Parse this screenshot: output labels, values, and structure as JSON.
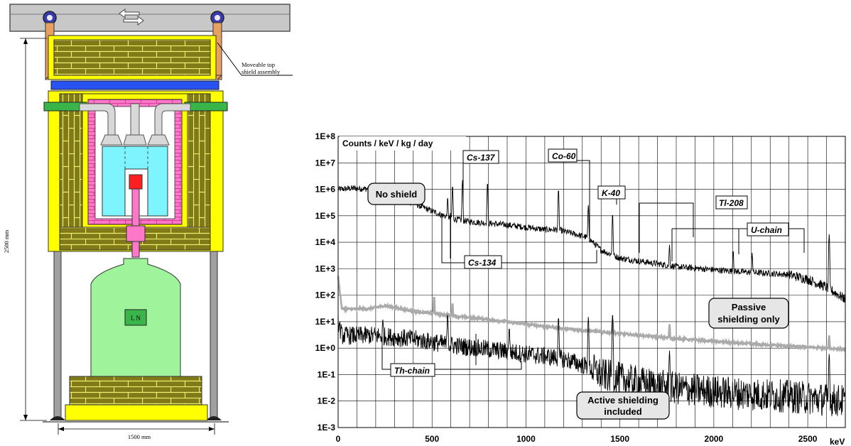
{
  "diagram": {
    "top_shield_label_line1": "Moveable top",
    "top_shield_label_line2": "shield assembly",
    "height_dimension": "2500 mm",
    "width_dimension": "1500 mm",
    "dewar_label": "L N",
    "colors": {
      "lead": "#807a18",
      "yellow_shield": "#ffff00",
      "blue_plate": "#2a52f0",
      "pink_shield": "#ff77c8",
      "cryostat": "#7df4ff",
      "green_beam": "#3ab54a",
      "dewar": "#9ef39b",
      "crystal": "#ff1f1f",
      "steel": "#c0c0c0",
      "orange_hook": "#e8a060",
      "bearing_blue": "#3a3ab0"
    }
  },
  "chart_data": {
    "type": "line",
    "ylabel": "Counts / keV / kg / day",
    "xlabel": "keV",
    "y_scale": "log",
    "xlim": [
      0,
      2700
    ],
    "ylim": [
      "1E-3",
      "1E+8"
    ],
    "x_ticks": [
      "0",
      "500",
      "1000",
      "1500",
      "2000",
      "2500"
    ],
    "y_ticks": [
      "1E-3",
      "1E-2",
      "1E-1",
      "1E+0",
      "1E+1",
      "1E+2",
      "1E+3",
      "1E+4",
      "1E+5",
      "1E+6",
      "1E+7",
      "1E+8"
    ],
    "grid": true,
    "series": [
      {
        "name": "No shield",
        "color": "#000000",
        "points": [
          [
            0,
            1000000.0
          ],
          [
            80,
            1100000.0
          ],
          [
            200,
            1000000.0
          ],
          [
            400,
            300000.0
          ],
          [
            500,
            150000.0
          ],
          [
            600,
            80000.0
          ],
          [
            700,
            60000.0
          ],
          [
            900,
            45000.0
          ],
          [
            1100,
            30000.0
          ],
          [
            1170,
            30000.0
          ],
          [
            1330,
            15000.0
          ],
          [
            1400,
            5000.0
          ],
          [
            1500,
            2500.0
          ],
          [
            1800,
            1200.0
          ],
          [
            2100,
            800.0
          ],
          [
            2400,
            600.0
          ],
          [
            2500,
            400.0
          ],
          [
            2600,
            200.0
          ],
          [
            2700,
            70.0
          ]
        ],
        "peaks": [
          [
            583,
            500000.0
          ],
          [
            609,
            1400000.0
          ],
          [
            662,
            2200000.0
          ],
          [
            795,
            1800000.0
          ],
          [
            1173,
            1000000.0
          ],
          [
            1332,
            250000.0
          ],
          [
            1461,
            120000.0
          ],
          [
            1764,
            8000.0
          ],
          [
            2103,
            5000.0
          ],
          [
            2204,
            4000.0
          ],
          [
            2614,
            20000.0
          ]
        ]
      },
      {
        "name": "Passive shielding only",
        "color": "#aaaaaa",
        "points": [
          [
            0,
            500.0
          ],
          [
            20,
            30.0
          ],
          [
            150,
            30.0
          ],
          [
            250,
            40.0
          ],
          [
            400,
            25.0
          ],
          [
            600,
            17.0
          ],
          [
            800,
            12.0
          ],
          [
            1000,
            8
          ],
          [
            1200,
            5.5
          ],
          [
            1500,
            3.5
          ],
          [
            1800,
            2.3
          ],
          [
            2100,
            1.6
          ],
          [
            2400,
            1.2
          ],
          [
            2700,
            0.9
          ]
        ],
        "peaks": [
          [
            511,
            90.0
          ],
          [
            609,
            50.0
          ],
          [
            1461,
            12.0
          ],
          [
            1764,
            8
          ],
          [
            2614,
            3
          ]
        ]
      },
      {
        "name": "Active shielding included",
        "color": "#000000",
        "points": [
          [
            0,
            10.0
          ],
          [
            20,
            3
          ],
          [
            200,
            3
          ],
          [
            400,
            2.2
          ],
          [
            600,
            1.3
          ],
          [
            800,
            0.9
          ],
          [
            1000,
            0.6
          ],
          [
            1200,
            0.4
          ],
          [
            1330,
            0.2
          ],
          [
            1400,
            0.1
          ],
          [
            1600,
            0.05
          ],
          [
            1800,
            0.03
          ],
          [
            2100,
            0.02
          ],
          [
            2400,
            0.015
          ],
          [
            2700,
            0.01
          ]
        ],
        "peaks": [
          [
            238,
            12.0
          ],
          [
            583,
            20.0
          ],
          [
            911,
            6
          ],
          [
            1173,
            15.0
          ],
          [
            1332,
            15.0
          ],
          [
            1461,
            20.0
          ],
          [
            1764,
            0.8
          ],
          [
            2614,
            0.6
          ]
        ]
      }
    ],
    "annotations": [
      "Cs-137",
      "Co-60",
      "K-40",
      "Tl-208",
      "U-chain",
      "Cs-134",
      "Th-chain"
    ],
    "callouts": {
      "no_shield": "No shield",
      "passive_line1": "Passive",
      "passive_line2": "shielding only",
      "active_line1": "Active shielding",
      "active_line2": "included"
    }
  }
}
